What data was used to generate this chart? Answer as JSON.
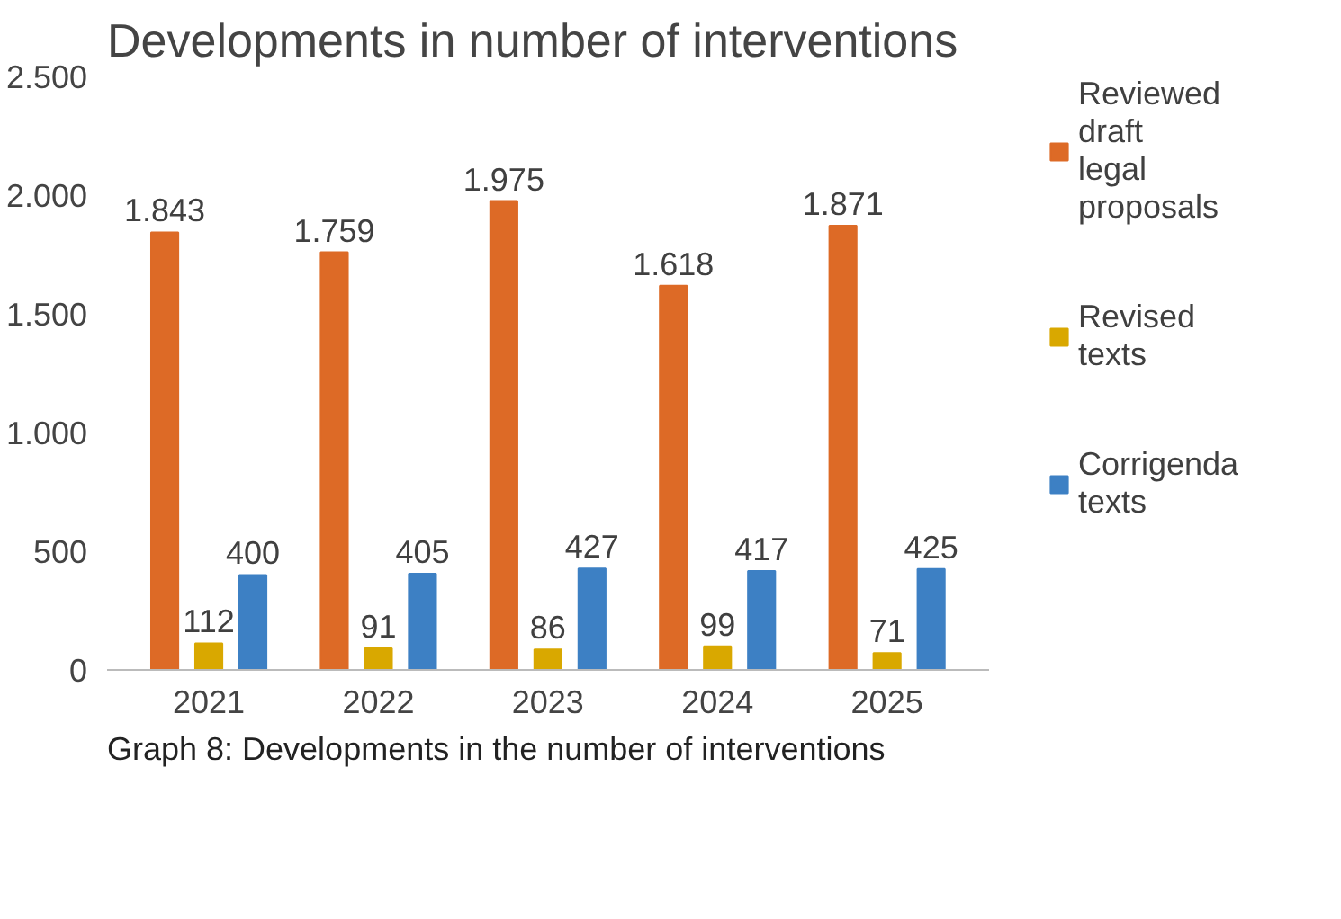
{
  "chart_data": {
    "type": "bar",
    "title": "Developments in number of interventions",
    "categories": [
      "2021",
      "2022",
      "2023",
      "2024",
      "2025"
    ],
    "series": [
      {
        "name": "Reviewed draft legal proposals",
        "color": "#dd6a26",
        "values": [
          1843,
          1759,
          1975,
          1618,
          1871
        ],
        "value_labels": [
          "1.843",
          "1.759",
          "1.975",
          "1.618",
          "1.871"
        ]
      },
      {
        "name": "Revised texts",
        "color": "#d9a800",
        "values": [
          112,
          91,
          86,
          99,
          71
        ],
        "value_labels": [
          "112",
          "91",
          "86",
          "99",
          "71"
        ]
      },
      {
        "name": "Corrigenda texts",
        "color": "#3d80c4",
        "values": [
          400,
          405,
          427,
          417,
          425
        ],
        "value_labels": [
          "400",
          "405",
          "427",
          "417",
          "425"
        ]
      }
    ],
    "ylim": [
      0,
      2500
    ],
    "yticks": [
      {
        "value": 0,
        "label": "0"
      },
      {
        "value": 500,
        "label": "500"
      },
      {
        "value": 1000,
        "label": "1.000"
      },
      {
        "value": 1500,
        "label": "1.500"
      },
      {
        "value": 2000,
        "label": "2.000"
      },
      {
        "value": 2500,
        "label": "2.500"
      }
    ],
    "legend": "right",
    "annotations": [
      "Graph 8: Developments in the number of interventions"
    ]
  }
}
